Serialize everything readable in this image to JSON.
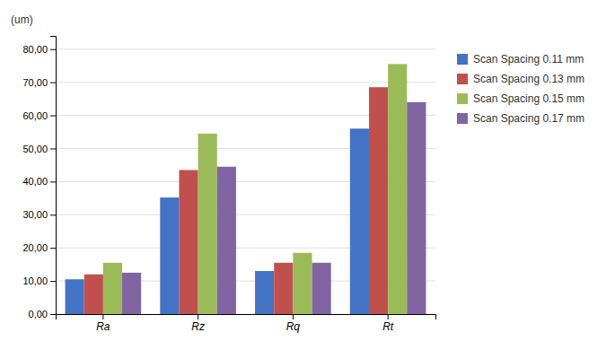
{
  "chart_data": {
    "type": "bar",
    "categories": [
      "Ra",
      "Rz",
      "Rq",
      "Rt"
    ],
    "series": [
      {
        "name": "Scan Spacing 0.11 mm",
        "color": "#4472C4",
        "values": [
          10.5,
          35.2,
          13.0,
          56.0
        ]
      },
      {
        "name": "Scan Spacing 0.13 mm",
        "color": "#C0504D",
        "values": [
          12.0,
          43.5,
          15.5,
          68.5
        ]
      },
      {
        "name": "Scan Spacing 0.15 mm",
        "color": "#9BBB59",
        "values": [
          15.5,
          54.5,
          18.5,
          75.5
        ]
      },
      {
        "name": "Scan Spacing 0.17 mm",
        "color": "#8064A2",
        "values": [
          12.5,
          44.5,
          15.5,
          64.0
        ]
      }
    ],
    "ylabel": "(um)",
    "ylim": [
      0,
      84
    ],
    "yticks": [
      {
        "value": 0,
        "label": "0,00"
      },
      {
        "value": 10,
        "label": "10,00"
      },
      {
        "value": 20,
        "label": "20,00"
      },
      {
        "value": 30,
        "label": "30,00"
      },
      {
        "value": 40,
        "label": "40,00"
      },
      {
        "value": 50,
        "label": "50,00"
      },
      {
        "value": 60,
        "label": "60,00"
      },
      {
        "value": 70,
        "label": "70,00"
      },
      {
        "value": 80,
        "label": "80,00"
      }
    ],
    "grid": true,
    "legend": "right"
  }
}
